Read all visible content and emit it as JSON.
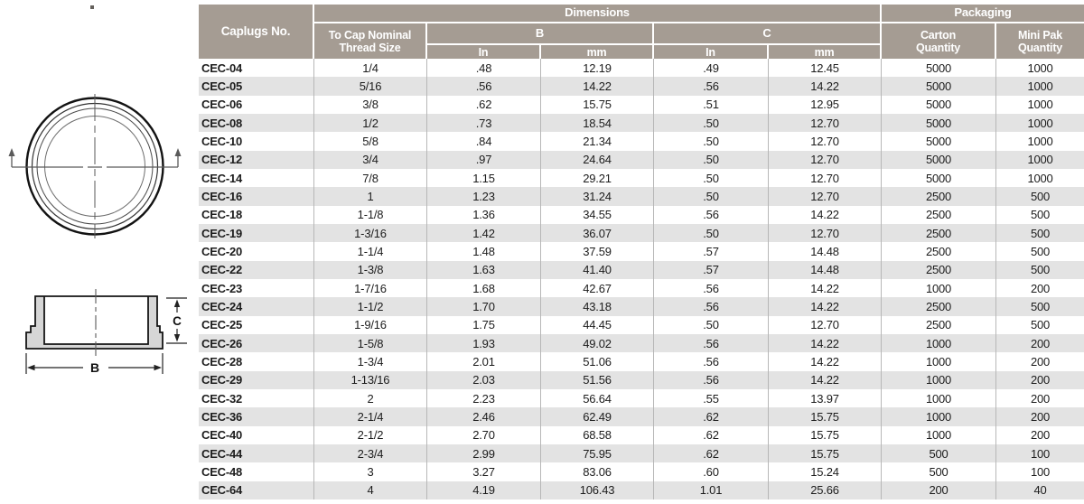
{
  "colors": {
    "header_bg": "#a59c93",
    "header_text": "#ffffff",
    "stripe": "#e3e3e3",
    "grid_line": "#b7b7b7",
    "text": "#1c1c1c"
  },
  "diagram": {
    "b_label": "B",
    "c_label": "C"
  },
  "table": {
    "header": {
      "caplugs_no": "Caplugs No.",
      "dimensions_group": "Dimensions",
      "packaging_group": "Packaging",
      "thread_size": "To Cap Nominal\nThread Size",
      "b_col": "B",
      "c_col": "C",
      "in_unit": "In",
      "mm_unit": "mm",
      "carton_qty": "Carton\nQuantity",
      "mini_pak_qty": "Mini Pak\nQuantity"
    },
    "rows": [
      [
        "CEC-04",
        "1/4",
        ".48",
        "12.19",
        ".49",
        "12.45",
        "5000",
        "1000"
      ],
      [
        "CEC-05",
        "5/16",
        ".56",
        "14.22",
        ".56",
        "14.22",
        "5000",
        "1000"
      ],
      [
        "CEC-06",
        "3/8",
        ".62",
        "15.75",
        ".51",
        "12.95",
        "5000",
        "1000"
      ],
      [
        "CEC-08",
        "1/2",
        ".73",
        "18.54",
        ".50",
        "12.70",
        "5000",
        "1000"
      ],
      [
        "CEC-10",
        "5/8",
        ".84",
        "21.34",
        ".50",
        "12.70",
        "5000",
        "1000"
      ],
      [
        "CEC-12",
        "3/4",
        ".97",
        "24.64",
        ".50",
        "12.70",
        "5000",
        "1000"
      ],
      [
        "CEC-14",
        "7/8",
        "1.15",
        "29.21",
        ".50",
        "12.70",
        "5000",
        "1000"
      ],
      [
        "CEC-16",
        "1",
        "1.23",
        "31.24",
        ".50",
        "12.70",
        "2500",
        "500"
      ],
      [
        "CEC-18",
        "1-1/8",
        "1.36",
        "34.55",
        ".56",
        "14.22",
        "2500",
        "500"
      ],
      [
        "CEC-19",
        "1-3/16",
        "1.42",
        "36.07",
        ".50",
        "12.70",
        "2500",
        "500"
      ],
      [
        "CEC-20",
        "1-1/4",
        "1.48",
        "37.59",
        ".57",
        "14.48",
        "2500",
        "500"
      ],
      [
        "CEC-22",
        "1-3/8",
        "1.63",
        "41.40",
        ".57",
        "14.48",
        "2500",
        "500"
      ],
      [
        "CEC-23",
        "1-7/16",
        "1.68",
        "42.67",
        ".56",
        "14.22",
        "1000",
        "200"
      ],
      [
        "CEC-24",
        "1-1/2",
        "1.70",
        "43.18",
        ".56",
        "14.22",
        "2500",
        "500"
      ],
      [
        "CEC-25",
        "1-9/16",
        "1.75",
        "44.45",
        ".50",
        "12.70",
        "2500",
        "500"
      ],
      [
        "CEC-26",
        "1-5/8",
        "1.93",
        "49.02",
        ".56",
        "14.22",
        "1000",
        "200"
      ],
      [
        "CEC-28",
        "1-3/4",
        "2.01",
        "51.06",
        ".56",
        "14.22",
        "1000",
        "200"
      ],
      [
        "CEC-29",
        "1-13/16",
        "2.03",
        "51.56",
        ".56",
        "14.22",
        "1000",
        "200"
      ],
      [
        "CEC-32",
        "2",
        "2.23",
        "56.64",
        ".55",
        "13.97",
        "1000",
        "200"
      ],
      [
        "CEC-36",
        "2-1/4",
        "2.46",
        "62.49",
        ".62",
        "15.75",
        "1000",
        "200"
      ],
      [
        "CEC-40",
        "2-1/2",
        "2.70",
        "68.58",
        ".62",
        "15.75",
        "1000",
        "200"
      ],
      [
        "CEC-44",
        "2-3/4",
        "2.99",
        "75.95",
        ".62",
        "15.75",
        "500",
        "100"
      ],
      [
        "CEC-48",
        "3",
        "3.27",
        "83.06",
        ".60",
        "15.24",
        "500",
        "100"
      ],
      [
        "CEC-64",
        "4",
        "4.19",
        "106.43",
        "1.01",
        "25.66",
        "200",
        "40"
      ]
    ]
  }
}
